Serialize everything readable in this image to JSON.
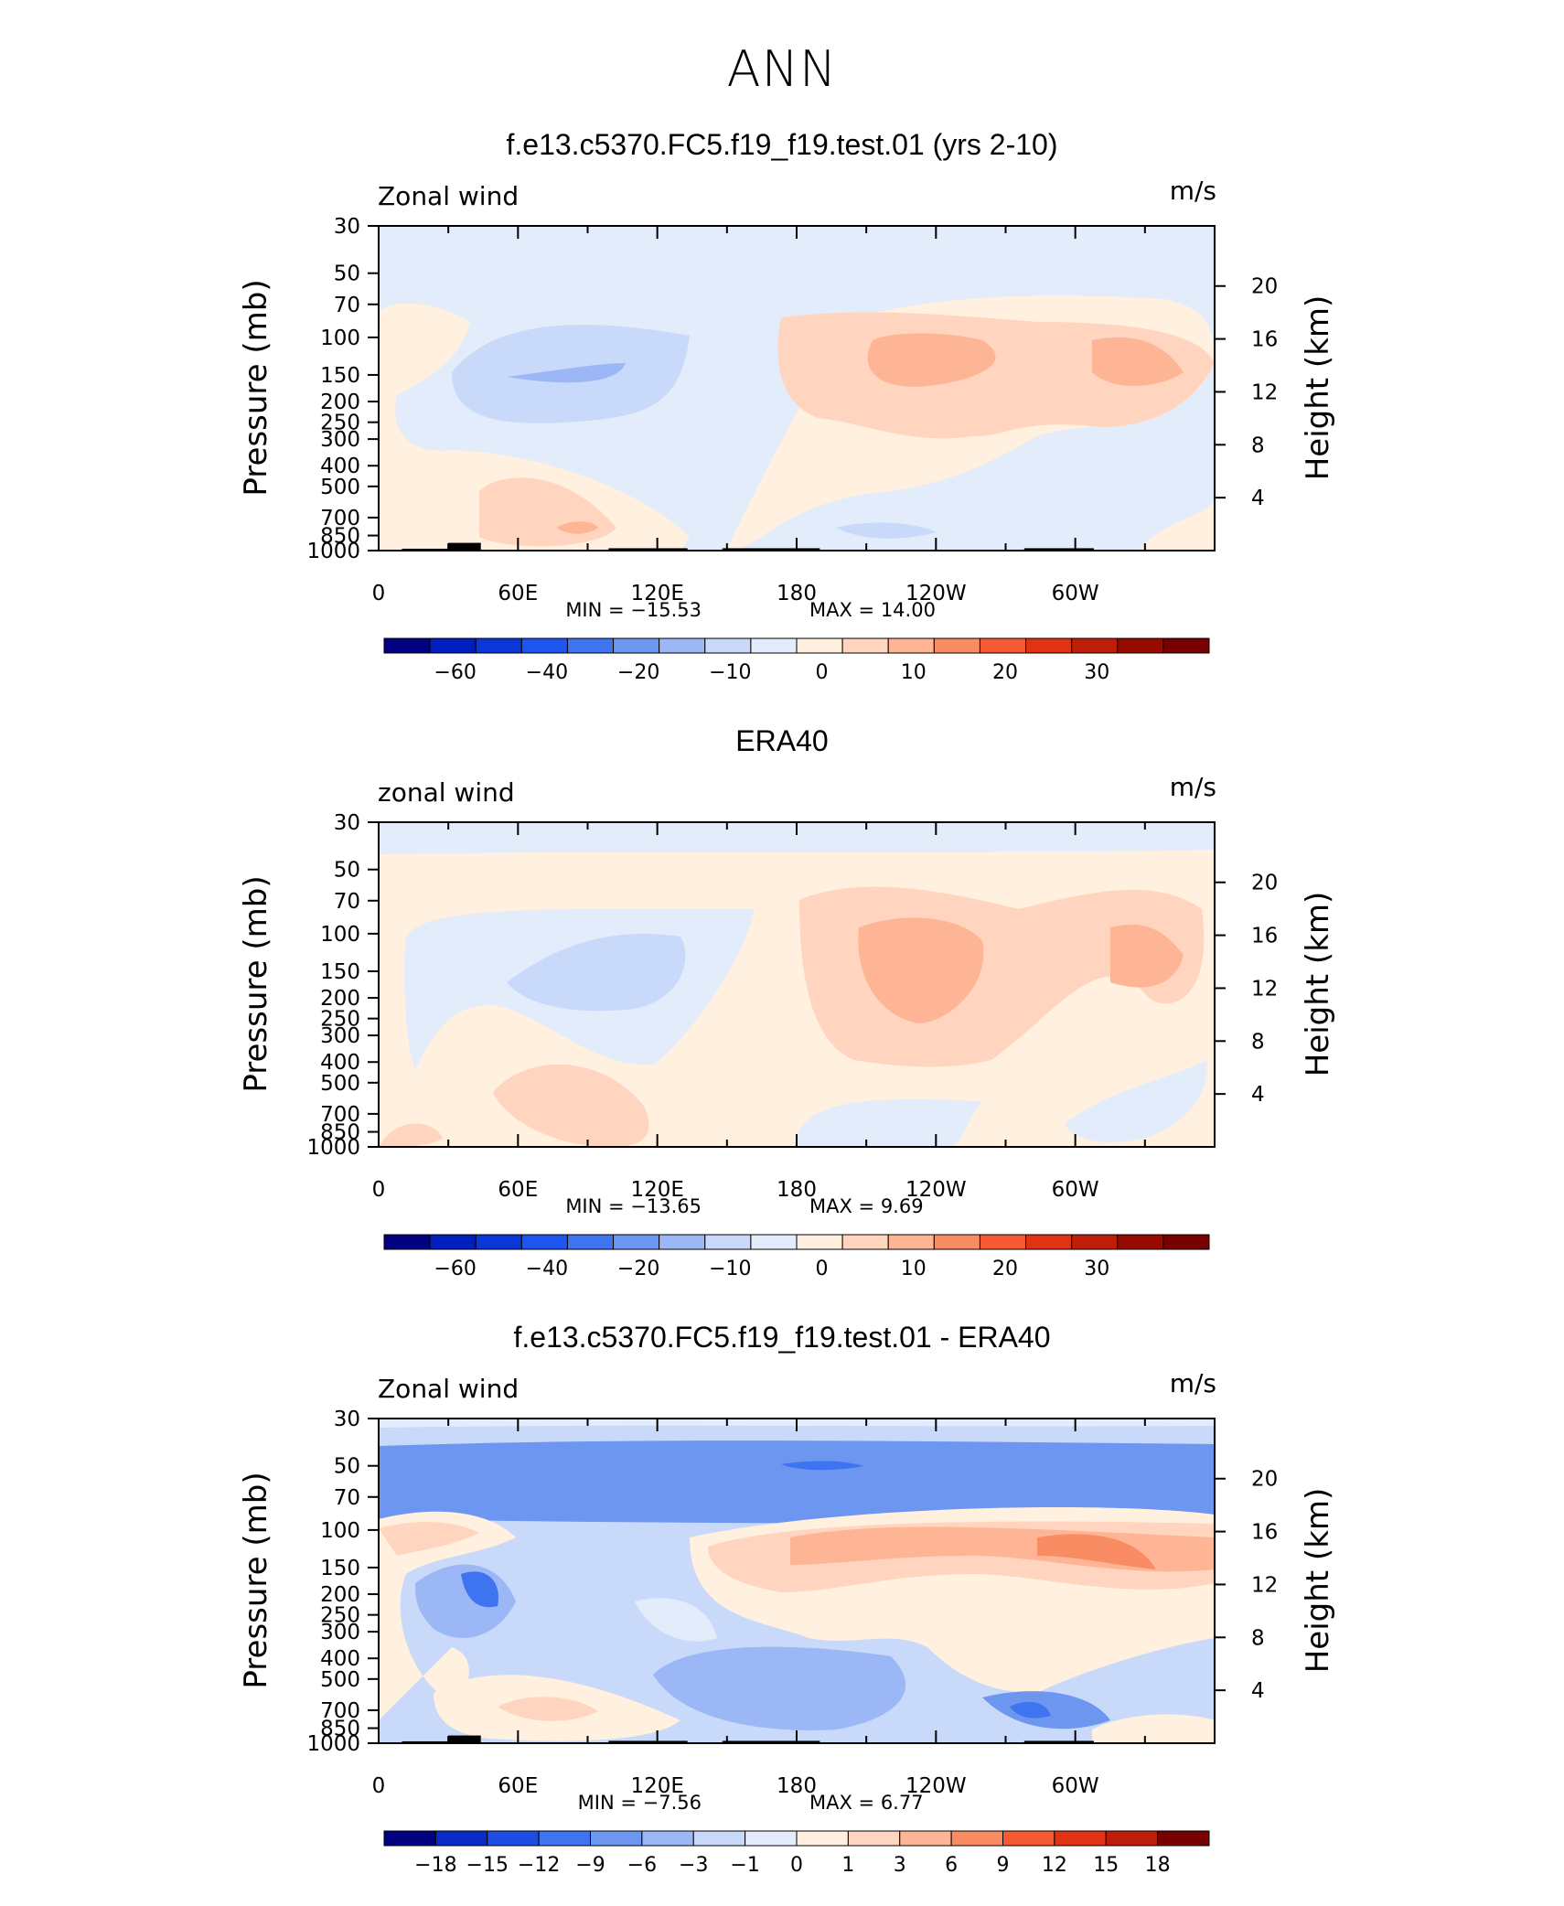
{
  "main_title": "ANN",
  "colors": {
    "abs": [
      "#000080",
      "#001dbe",
      "#0a37d8",
      "#1e55ef",
      "#3f74f0",
      "#6d96f0",
      "#9bb7f5",
      "#c9d9fa",
      "#e3ecfa",
      "#fff0e0",
      "#ffd5bf",
      "#fdb596",
      "#fa8c64",
      "#f55a32",
      "#e23214",
      "#bc1e0a",
      "#960a00",
      "#780000"
    ],
    "diff": [
      "#000080",
      "#0a2bc8",
      "#1e4de6",
      "#3f74f0",
      "#6d96f0",
      "#9bb7f5",
      "#c9d9fa",
      "#e3ecfa",
      "#fff0e0",
      "#ffd5bf",
      "#fdb596",
      "#fa8c64",
      "#f55a32",
      "#e23214",
      "#bc1e0a",
      "#780000"
    ]
  },
  "panels": [
    {
      "title": "f.e13.c5370.FC5.f19_f19.test.01 (yrs 2-10)",
      "left_label": "Zonal wind",
      "units": "m/s",
      "y_title": "Pressure (mb)",
      "y2_title": "Height (km)",
      "min_text": "MIN  =  −15.53",
      "max_text": "MAX  =   14.00",
      "colorbar_labels": [
        "−60",
        "−40",
        "−20",
        "−10",
        "0",
        "10",
        "20",
        "30"
      ]
    },
    {
      "title": "ERA40",
      "left_label": "zonal wind",
      "units": "m/s",
      "y_title": "Pressure (mb)",
      "y2_title": "Height (km)",
      "min_text": "MIN  =  −13.65",
      "max_text": "MAX  =    9.69",
      "colorbar_labels": [
        "−60",
        "−40",
        "−20",
        "−10",
        "0",
        "10",
        "20",
        "30"
      ]
    },
    {
      "title": "f.e13.c5370.FC5.f19_f19.test.01 - ERA40",
      "left_label": "Zonal wind",
      "units": "m/s",
      "y_title": "Pressure (mb)",
      "y2_title": "Height (km)",
      "min_text": "MIN  =   −7.56",
      "max_text": "MAX  =   6.77",
      "colorbar_labels": [
        "−18",
        "−15",
        "−12",
        "−9",
        "−6",
        "−3",
        "−1",
        "0",
        "1",
        "3",
        "6",
        "9",
        "12",
        "15",
        "18"
      ]
    }
  ],
  "chart_data": [
    {
      "type": "heatmap",
      "title": "f.e13.c5370.FC5.f19_f19.test.01 (yrs 2-10)",
      "variable": "Zonal wind",
      "units": "m/s",
      "x_ticks": [
        "0",
        "60E",
        "120E",
        "180",
        "120W",
        "60W"
      ],
      "xlim": [
        0,
        360
      ],
      "y_ticks": [
        30,
        50,
        70,
        100,
        150,
        200,
        250,
        300,
        400,
        500,
        700,
        850,
        1000
      ],
      "ylim": [
        1000,
        30
      ],
      "y_scale": "log",
      "y2_ticks": [
        4,
        8,
        12,
        16,
        20
      ],
      "min": -15.53,
      "max": 14.0,
      "levels": [
        -70,
        -60,
        -50,
        -40,
        -30,
        -20,
        -15,
        -10,
        -5,
        0,
        5,
        10,
        15,
        20,
        25,
        30,
        35
      ]
    },
    {
      "type": "heatmap",
      "title": "ERA40",
      "variable": "zonal wind",
      "units": "m/s",
      "x_ticks": [
        "0",
        "60E",
        "120E",
        "180",
        "120W",
        "60W"
      ],
      "xlim": [
        0,
        360
      ],
      "y_ticks": [
        30,
        50,
        70,
        100,
        150,
        200,
        250,
        300,
        400,
        500,
        700,
        850,
        1000
      ],
      "ylim": [
        1000,
        30
      ],
      "y_scale": "log",
      "y2_ticks": [
        4,
        8,
        12,
        16,
        20
      ],
      "min": -13.65,
      "max": 9.69,
      "levels": [
        -70,
        -60,
        -50,
        -40,
        -30,
        -20,
        -15,
        -10,
        -5,
        0,
        5,
        10,
        15,
        20,
        25,
        30,
        35
      ]
    },
    {
      "type": "heatmap",
      "title": "f.e13.c5370.FC5.f19_f19.test.01 - ERA40",
      "variable": "Zonal wind",
      "units": "m/s",
      "x_ticks": [
        "0",
        "60E",
        "120E",
        "180",
        "120W",
        "60W"
      ],
      "xlim": [
        0,
        360
      ],
      "y_ticks": [
        30,
        50,
        70,
        100,
        150,
        200,
        250,
        300,
        400,
        500,
        700,
        850,
        1000
      ],
      "ylim": [
        1000,
        30
      ],
      "y_scale": "log",
      "y2_ticks": [
        4,
        8,
        12,
        16,
        20
      ],
      "min": -7.56,
      "max": 6.77,
      "levels": [
        -18,
        -15,
        -12,
        -9,
        -6,
        -3,
        -1,
        0,
        1,
        3,
        6,
        9,
        12,
        15,
        18
      ]
    }
  ]
}
